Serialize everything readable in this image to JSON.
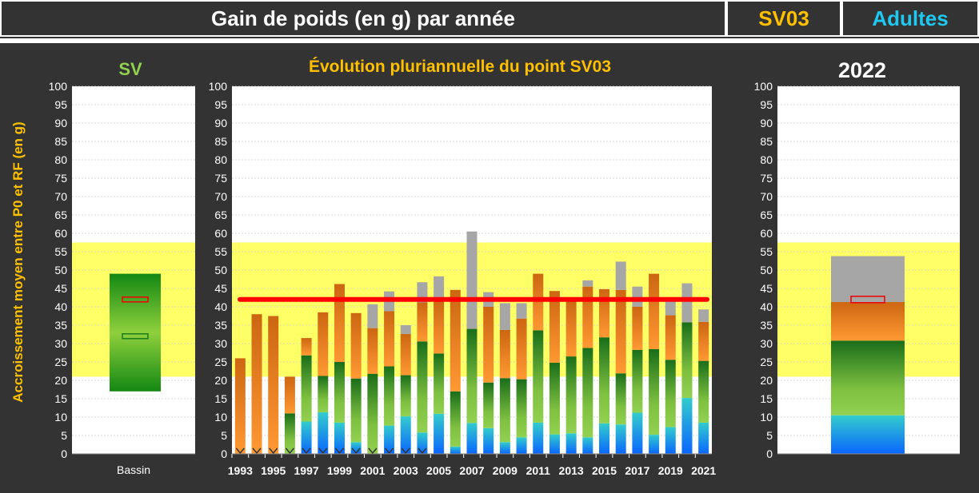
{
  "header": {
    "title": "Gain de poids (en g) par année",
    "site": "SV03",
    "group": "Adultes"
  },
  "colors": {
    "title": "#ffffff",
    "site": "#ffc000",
    "group": "#1ec8f0",
    "subtitle_left": "#92d050",
    "subtitle_mid": "#ffc000",
    "band": "#ffff66",
    "ref_line": "#ff0000"
  },
  "chart_data": [
    {
      "type": "bar",
      "title": "SV",
      "categories": [
        "Bassin"
      ],
      "ylabel": "Accroissement moyen entre P0 et RF (en g)",
      "ylim": [
        0,
        100
      ],
      "yticks": [
        0,
        5,
        10,
        15,
        20,
        25,
        30,
        35,
        40,
        45,
        50,
        55,
        60,
        65,
        70,
        75,
        80,
        85,
        90,
        95,
        100
      ],
      "band": [
        21,
        57.5
      ],
      "range": [
        17,
        49
      ],
      "marker_red": 42,
      "marker_green": 32
    },
    {
      "type": "bar",
      "title": "Évolution pluriannuelle du point SV03",
      "ylim": [
        0,
        100
      ],
      "band": [
        21,
        57.5
      ],
      "ref_line": 42,
      "x": [
        1993,
        1994,
        1995,
        1996,
        1997,
        1998,
        1999,
        2000,
        2001,
        2002,
        2003,
        2004,
        2005,
        2006,
        2007,
        2008,
        2009,
        2010,
        2011,
        2012,
        2013,
        2014,
        2015,
        2016,
        2017,
        2018,
        2019,
        2020,
        2021
      ],
      "xtick_labels": [
        "1993",
        "1995",
        "1997",
        "1999",
        "2001",
        "2003",
        "2005",
        "2007",
        "2009",
        "2011",
        "2013",
        "2015",
        "2017",
        "2019",
        "2021"
      ],
      "series": [
        {
          "name": "blue",
          "values": [
            0,
            0,
            0,
            0,
            8.8,
            11.3,
            8.5,
            3.2,
            0,
            7.7,
            10.2,
            5.8,
            10.9,
            2,
            8.4,
            7,
            3.2,
            4.5,
            8.5,
            5.3,
            5.6,
            4.5,
            8.3,
            8,
            11.2,
            5.2,
            7.3,
            15.2,
            8.5
          ]
        },
        {
          "name": "green",
          "values": [
            0,
            0,
            0,
            11,
            26.8,
            21.2,
            25,
            20.5,
            21.8,
            23.8,
            21.4,
            30.6,
            27.3,
            17,
            34,
            19.4,
            20.6,
            20.3,
            33.6,
            24.8,
            26.5,
            28.8,
            31.7,
            21.9,
            28.3,
            28.5,
            25.6,
            35.8,
            25.3
          ]
        },
        {
          "name": "orange",
          "values": [
            26,
            38,
            37.5,
            21,
            31.5,
            38.5,
            46.2,
            38.3,
            34.2,
            38.8,
            32.6,
            41.2,
            42,
            44.6,
            34,
            40,
            33.7,
            36.8,
            49,
            44.3,
            42,
            45.5,
            44.8,
            44.6,
            40,
            49,
            37.7,
            35.8,
            35.9
          ]
        },
        {
          "name": "gray",
          "values": [
            26,
            38,
            37.5,
            21,
            31.5,
            38.5,
            46.2,
            38.3,
            40.7,
            44.2,
            35,
            46.7,
            48.3,
            44.6,
            60.5,
            44,
            41,
            41,
            49,
            44.3,
            42,
            47.2,
            44.8,
            52.3,
            45.5,
            49,
            42,
            46.4,
            39.3
          ]
        }
      ],
      "flagged": [
        1993,
        1994,
        1995,
        1996,
        1997,
        1998,
        1999,
        2000,
        2001,
        2002,
        2003,
        2004
      ]
    },
    {
      "type": "bar",
      "title": "2022",
      "ylim": [
        0,
        100
      ],
      "band": [
        21,
        57.5
      ],
      "blue": 10.5,
      "green": 30.8,
      "orange": 41.3,
      "gray": 53.8,
      "marker_red": 42
    }
  ]
}
